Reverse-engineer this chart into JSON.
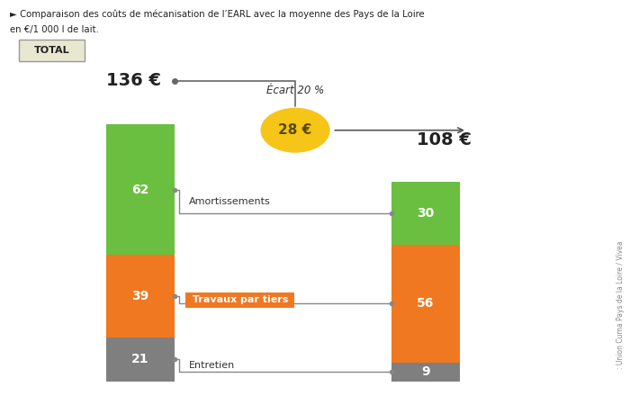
{
  "title_line1": "► Comparaison des coûts de mécanisation de l’EARL avec la moyenne des Pays de la Loire",
  "title_line2": "en €/1 000 l de lait.",
  "segments_bar1": [
    {
      "label": "21",
      "value": 21,
      "color": "#7f7f7f"
    },
    {
      "label": "39",
      "value": 39,
      "color": "#f07820"
    },
    {
      "label": "62",
      "value": 62,
      "color": "#6abf40"
    }
  ],
  "segments_bar2": [
    {
      "label": "9",
      "value": 9,
      "color": "#7f7f7f"
    },
    {
      "label": "56",
      "value": 56,
      "color": "#f07820"
    },
    {
      "label": "30",
      "value": 30,
      "color": "#6abf40"
    }
  ],
  "bar1_total": 136,
  "bar2_total": 108,
  "total1_text": "136 €",
  "total2_text": "108 €",
  "ecart_label": "Écart 20 %",
  "ecart_value": "28 €",
  "ecart_circle_color": "#f5c518",
  "total_box_label": "TOTAL",
  "total_box_bg": "#e8e8d0",
  "total_box_border": "#999999",
  "background_color": "#ffffff",
  "source_text": ": Union Cuma Pays de la Loire / Vivea",
  "connector_color": "#888888",
  "amort_label": "Amortissements",
  "travaux_label": "Travaux par tiers",
  "entretien_label": "Entretien"
}
